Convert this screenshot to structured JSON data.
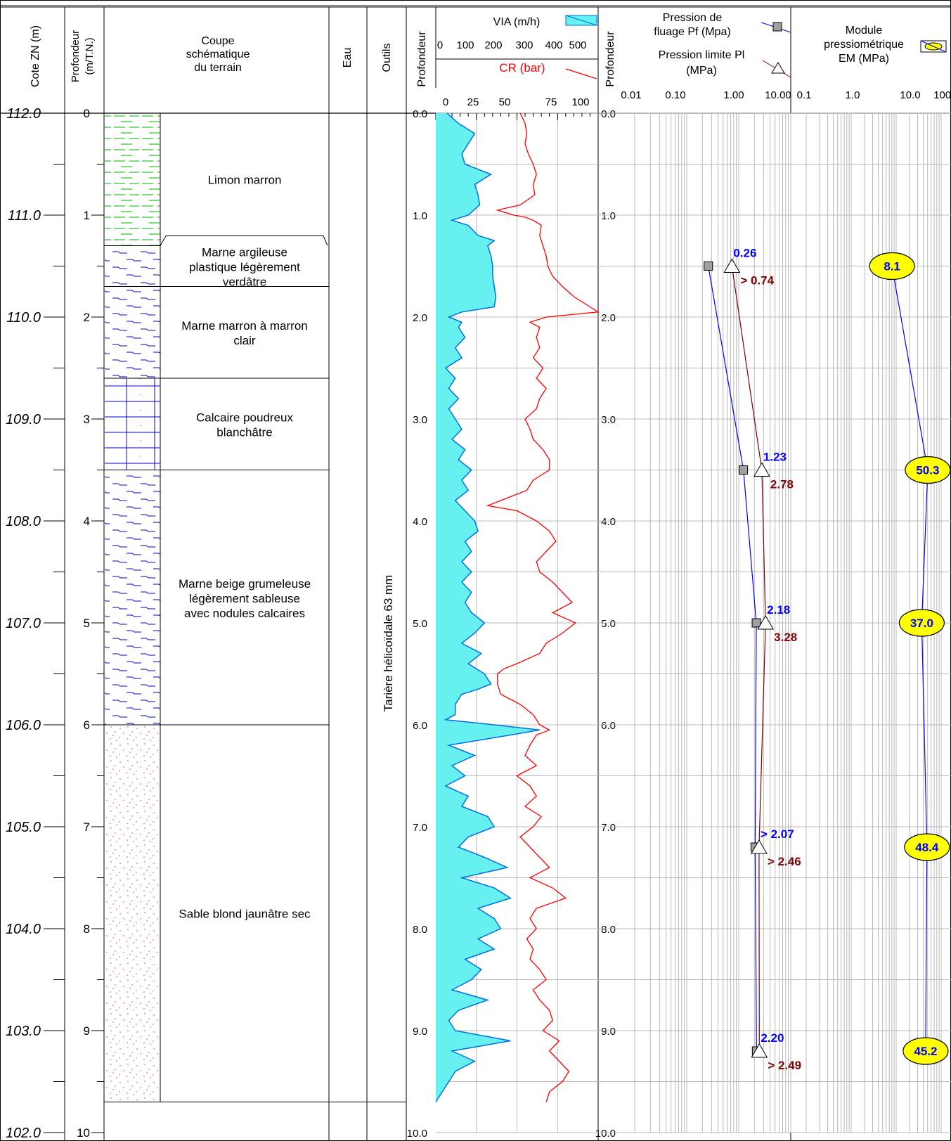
{
  "headers": {
    "cote": "Cote ZN (m)",
    "profondeur_tn": [
      "Profondeur",
      "(m/T.N.)"
    ],
    "coupe": [
      "Coupe",
      "schématique",
      "du terrain"
    ],
    "eau": "Eau",
    "outils": "Outils",
    "profondeur_a": "Profondeur",
    "via": "VIA (m/h)",
    "cr": "CR (bar)",
    "profondeur_b": "Profondeur",
    "pf_legend": [
      "Pression de",
      "fluage Pf (Mpa)"
    ],
    "pl_legend": [
      "Pression limite Pl",
      "(MPa)"
    ],
    "em_legend": [
      "Module",
      "pressiométrique",
      "EM (MPa)"
    ]
  },
  "outils_label": "Tarière hélicoïdale 63 mm",
  "colors": {
    "via_fill": "#66f0f0",
    "via_line": "#0070e0",
    "cr_line": "#ff0000",
    "pf_line": "#0000ff",
    "pl_line": "#800000",
    "em_line": "#0000ff",
    "em_fill": "#ffff00",
    "pf_label": "#0000ff",
    "pl_label": "#800000",
    "limon": "#00b000",
    "marne": "#0000cc",
    "sable": "#cc3333",
    "grid": "#b8b8b8"
  },
  "chart_data": {
    "type": "line",
    "ground_level": 112.0,
    "depth_range": [
      0,
      10
    ],
    "cote_ticks": [
      "112.0",
      "111.0",
      "110.0",
      "109.0",
      "108.0",
      "107.0",
      "106.0",
      "105.0",
      "104.0",
      "103.0",
      "102.0"
    ],
    "depth_ticks": [
      "0",
      "1",
      "2",
      "3",
      "4",
      "5",
      "6",
      "7",
      "8",
      "9",
      "10"
    ],
    "depth_ticks_decimal": [
      "0.0",
      "1.0",
      "2.0",
      "3.0",
      "4.0",
      "5.0",
      "6.0",
      "7.0",
      "8.0",
      "9.0",
      "10.0"
    ],
    "layers": [
      {
        "top": 0.0,
        "bottom": 1.3,
        "pattern": "limon",
        "label": [
          "Limon marron"
        ]
      },
      {
        "top": 1.3,
        "bottom": 1.7,
        "pattern": "marne",
        "label": [
          "Marne argileuse",
          "plastique légèrement",
          "verdâtre"
        ]
      },
      {
        "top": 1.7,
        "bottom": 2.6,
        "pattern": "marne",
        "label": [
          "Marne marron à marron",
          "clair"
        ]
      },
      {
        "top": 2.6,
        "bottom": 3.5,
        "pattern": "calcaire",
        "label": [
          "Calcaire poudreux",
          "blanchâtre"
        ]
      },
      {
        "top": 3.5,
        "bottom": 6.0,
        "pattern": "marne",
        "label": [
          "Marne beige grumeleuse",
          "légèrement sableuse",
          "avec nodules calcaires"
        ]
      },
      {
        "top": 6.0,
        "bottom": 9.7,
        "pattern": "sable",
        "label": [
          "Sable blond jaunâtre sec"
        ]
      }
    ],
    "via": {
      "name": "VIA (m/h)",
      "range": [
        0,
        500
      ],
      "ticks": [
        "0",
        "100",
        "200",
        "300",
        "400",
        "500"
      ],
      "points": [
        [
          0.0,
          35
        ],
        [
          0.1,
          70
        ],
        [
          0.2,
          120
        ],
        [
          0.3,
          100
        ],
        [
          0.4,
          80
        ],
        [
          0.5,
          90
        ],
        [
          0.6,
          170
        ],
        [
          0.7,
          120
        ],
        [
          0.8,
          130
        ],
        [
          0.9,
          135
        ],
        [
          1.0,
          100
        ],
        [
          1.05,
          50
        ],
        [
          1.1,
          100
        ],
        [
          1.2,
          130
        ],
        [
          1.25,
          180
        ],
        [
          1.3,
          160
        ],
        [
          1.4,
          170
        ],
        [
          1.5,
          175
        ],
        [
          1.6,
          175
        ],
        [
          1.7,
          180
        ],
        [
          1.8,
          185
        ],
        [
          1.9,
          180
        ],
        [
          1.95,
          80
        ],
        [
          2.0,
          40
        ],
        [
          2.05,
          80
        ],
        [
          2.1,
          70
        ],
        [
          2.2,
          90
        ],
        [
          2.3,
          60
        ],
        [
          2.4,
          80
        ],
        [
          2.5,
          30
        ],
        [
          2.6,
          60
        ],
        [
          2.7,
          40
        ],
        [
          2.8,
          70
        ],
        [
          2.9,
          40
        ],
        [
          3.0,
          60
        ],
        [
          3.1,
          80
        ],
        [
          3.2,
          50
        ],
        [
          3.3,
          90
        ],
        [
          3.4,
          70
        ],
        [
          3.5,
          110
        ],
        [
          3.6,
          80
        ],
        [
          3.7,
          100
        ],
        [
          3.8,
          60
        ],
        [
          3.9,
          90
        ],
        [
          4.0,
          120
        ],
        [
          4.1,
          130
        ],
        [
          4.2,
          90
        ],
        [
          4.3,
          110
        ],
        [
          4.4,
          80
        ],
        [
          4.5,
          110
        ],
        [
          4.6,
          80
        ],
        [
          4.7,
          110
        ],
        [
          4.8,
          90
        ],
        [
          4.9,
          110
        ],
        [
          5.0,
          150
        ],
        [
          5.1,
          120
        ],
        [
          5.2,
          80
        ],
        [
          5.3,
          140
        ],
        [
          5.4,
          100
        ],
        [
          5.5,
          150
        ],
        [
          5.6,
          170
        ],
        [
          5.65,
          130
        ],
        [
          5.7,
          80
        ],
        [
          5.8,
          60
        ],
        [
          5.9,
          60
        ],
        [
          5.95,
          30
        ],
        [
          6.0,
          180
        ],
        [
          6.05,
          320
        ],
        [
          6.1,
          230
        ],
        [
          6.2,
          40
        ],
        [
          6.3,
          120
        ],
        [
          6.4,
          50
        ],
        [
          6.5,
          90
        ],
        [
          6.6,
          30
        ],
        [
          6.7,
          100
        ],
        [
          6.8,
          80
        ],
        [
          6.9,
          160
        ],
        [
          7.0,
          180
        ],
        [
          7.1,
          100
        ],
        [
          7.2,
          70
        ],
        [
          7.3,
          150
        ],
        [
          7.4,
          220
        ],
        [
          7.5,
          80
        ],
        [
          7.6,
          180
        ],
        [
          7.7,
          230
        ],
        [
          7.8,
          130
        ],
        [
          7.9,
          180
        ],
        [
          8.0,
          200
        ],
        [
          8.1,
          130
        ],
        [
          8.2,
          180
        ],
        [
          8.3,
          90
        ],
        [
          8.4,
          140
        ],
        [
          8.5,
          110
        ],
        [
          8.6,
          50
        ],
        [
          8.7,
          160
        ],
        [
          8.8,
          70
        ],
        [
          8.9,
          40
        ],
        [
          9.0,
          60
        ],
        [
          9.1,
          230
        ],
        [
          9.2,
          50
        ],
        [
          9.3,
          120
        ],
        [
          9.4,
          60
        ],
        [
          9.5,
          40
        ],
        [
          9.6,
          20
        ],
        [
          9.7,
          0
        ]
      ]
    },
    "cr": {
      "name": "CR (bar)",
      "range": [
        0,
        100
      ],
      "ticks": [
        "0",
        "25",
        "50",
        "75",
        "100"
      ],
      "points": [
        [
          0.0,
          52
        ],
        [
          0.1,
          55
        ],
        [
          0.2,
          56
        ],
        [
          0.3,
          55
        ],
        [
          0.4,
          57
        ],
        [
          0.5,
          60
        ],
        [
          0.6,
          62
        ],
        [
          0.7,
          60
        ],
        [
          0.8,
          61
        ],
        [
          0.9,
          52
        ],
        [
          0.95,
          38
        ],
        [
          1.0,
          48
        ],
        [
          1.02,
          55
        ],
        [
          1.05,
          60
        ],
        [
          1.1,
          65
        ],
        [
          1.2,
          64
        ],
        [
          1.3,
          66
        ],
        [
          1.4,
          68
        ],
        [
          1.5,
          69
        ],
        [
          1.6,
          72
        ],
        [
          1.7,
          78
        ],
        [
          1.8,
          85
        ],
        [
          1.9,
          95
        ],
        [
          1.95,
          100
        ],
        [
          2.0,
          68
        ],
        [
          2.05,
          58
        ],
        [
          2.1,
          64
        ],
        [
          2.2,
          62
        ],
        [
          2.3,
          64
        ],
        [
          2.4,
          60
        ],
        [
          2.5,
          66
        ],
        [
          2.6,
          62
        ],
        [
          2.7,
          68
        ],
        [
          2.8,
          64
        ],
        [
          2.9,
          62
        ],
        [
          3.0,
          55
        ],
        [
          3.1,
          58
        ],
        [
          3.2,
          60
        ],
        [
          3.3,
          66
        ],
        [
          3.4,
          70
        ],
        [
          3.5,
          70
        ],
        [
          3.6,
          60
        ],
        [
          3.7,
          56
        ],
        [
          3.8,
          40
        ],
        [
          3.85,
          32
        ],
        [
          3.9,
          50
        ],
        [
          4.0,
          62
        ],
        [
          4.1,
          70
        ],
        [
          4.2,
          74
        ],
        [
          4.3,
          68
        ],
        [
          4.4,
          62
        ],
        [
          4.5,
          64
        ],
        [
          4.6,
          72
        ],
        [
          4.7,
          78
        ],
        [
          4.8,
          84
        ],
        [
          4.9,
          72
        ],
        [
          5.0,
          86
        ],
        [
          5.1,
          78
        ],
        [
          5.2,
          68
        ],
        [
          5.3,
          64
        ],
        [
          5.4,
          50
        ],
        [
          5.45,
          42
        ],
        [
          5.5,
          38
        ],
        [
          5.6,
          38
        ],
        [
          5.7,
          40
        ],
        [
          5.8,
          52
        ],
        [
          5.9,
          60
        ],
        [
          6.0,
          64
        ],
        [
          6.05,
          70
        ],
        [
          6.1,
          62
        ],
        [
          6.2,
          58
        ],
        [
          6.3,
          55
        ],
        [
          6.4,
          62
        ],
        [
          6.5,
          50
        ],
        [
          6.6,
          58
        ],
        [
          6.7,
          62
        ],
        [
          6.8,
          55
        ],
        [
          6.9,
          65
        ],
        [
          7.0,
          60
        ],
        [
          7.1,
          52
        ],
        [
          7.2,
          58
        ],
        [
          7.3,
          64
        ],
        [
          7.4,
          70
        ],
        [
          7.5,
          58
        ],
        [
          7.6,
          72
        ],
        [
          7.7,
          80
        ],
        [
          7.8,
          62
        ],
        [
          7.9,
          58
        ],
        [
          8.0,
          62
        ],
        [
          8.1,
          56
        ],
        [
          8.2,
          60
        ],
        [
          8.3,
          58
        ],
        [
          8.4,
          64
        ],
        [
          8.5,
          68
        ],
        [
          8.6,
          60
        ],
        [
          8.7,
          64
        ],
        [
          8.8,
          70
        ],
        [
          8.9,
          72
        ],
        [
          9.0,
          66
        ],
        [
          9.1,
          76
        ],
        [
          9.2,
          70
        ],
        [
          9.3,
          76
        ],
        [
          9.4,
          82
        ],
        [
          9.5,
          78
        ],
        [
          9.6,
          70
        ],
        [
          9.7,
          68
        ]
      ]
    },
    "pressio": {
      "axis_ticks": [
        "0.01",
        "0.10",
        "1.00",
        "10.00"
      ],
      "range": [
        0.01,
        10
      ],
      "tests": [
        {
          "depth": 1.5,
          "pf": 0.26,
          "pl": 0.74,
          "pf_label": "0.26",
          "pl_label": "> 0.74"
        },
        {
          "depth": 3.5,
          "pf": 1.23,
          "pl": 2.78,
          "pf_label": "1.23",
          "pl_label": "2.78"
        },
        {
          "depth": 5.0,
          "pf": 2.18,
          "pl": 3.28,
          "pf_label": "2.18",
          "pl_label": "3.28"
        },
        {
          "depth": 7.2,
          "pf": 2.07,
          "pl": 2.46,
          "pf_label": "> 2.07",
          "pl_label": "> 2.46"
        },
        {
          "depth": 9.2,
          "pf": 2.2,
          "pl": 2.49,
          "pf_label": "2.20",
          "pl_label": "> 2.49"
        }
      ]
    },
    "em": {
      "axis_ticks": [
        "0.1",
        "1.0",
        "10.0",
        "100.0"
      ],
      "range": [
        0.1,
        100
      ],
      "tests": [
        {
          "depth": 1.5,
          "value": 8.1,
          "label": "8.1"
        },
        {
          "depth": 3.5,
          "value": 50.3,
          "label": "50.3"
        },
        {
          "depth": 5.0,
          "value": 37.0,
          "label": "37.0"
        },
        {
          "depth": 7.2,
          "value": 48.4,
          "label": "48.4"
        },
        {
          "depth": 9.2,
          "value": 45.2,
          "label": "45.2"
        }
      ]
    }
  }
}
